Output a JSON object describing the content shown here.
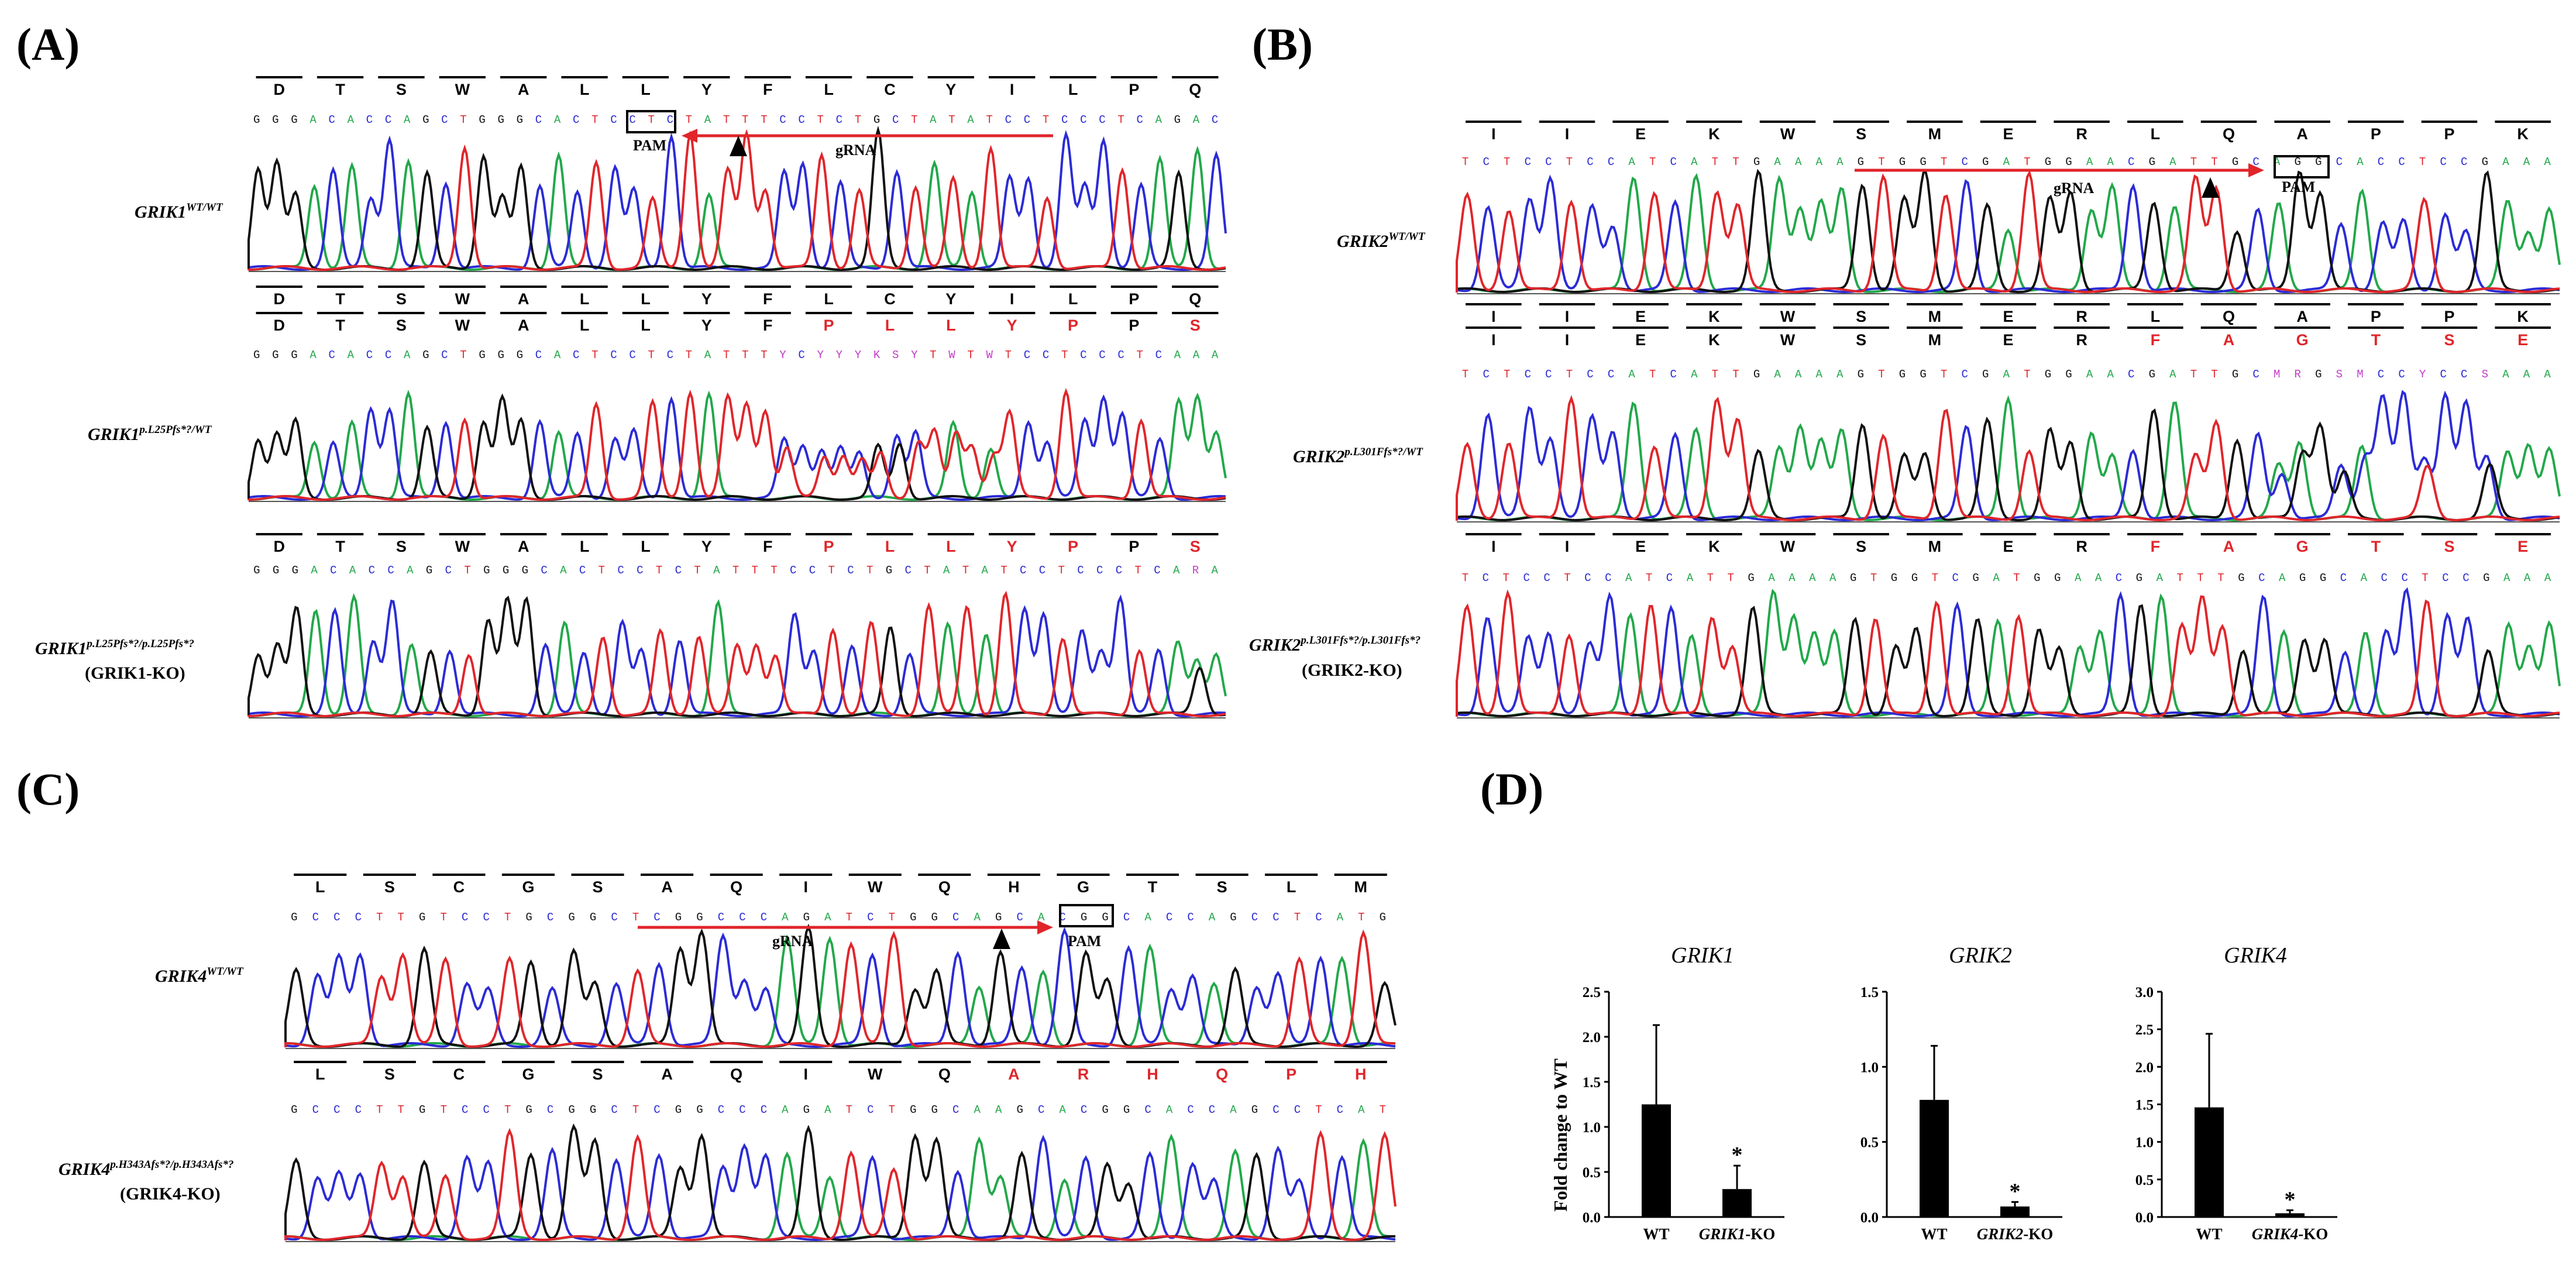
{
  "panel_labels": {
    "a": "(A)",
    "b": "(B)",
    "c": "(C)",
    "d": "(D)"
  },
  "annotations": {
    "pam": "PAM",
    "grna": "gRNA",
    "mark": "▲"
  },
  "colors": {
    "A": "#22a84a",
    "C": "#2b2bd6",
    "G": "#111111",
    "T": "#e0262b",
    "N": "#c23bc7",
    "mut": "#e0262b"
  },
  "panel_a": {
    "rows": [
      {
        "gene": "GRIK1",
        "sup": "WT/WT",
        "sub": "",
        "aa_wt": [
          "D",
          "T",
          "S",
          "W",
          "A",
          "L",
          "L",
          "Y",
          "F",
          "L",
          "C",
          "Y",
          "I",
          "L",
          "P",
          "Q"
        ],
        "aa_mut": [],
        "seq": "GGGACACCAGCTGGGCACTCCTCTATTTCCTCTGCTATATCCTCCCTCAGAC"
      },
      {
        "gene": "GRIK1",
        "sup": "p.L25Pfs*?/WT",
        "sub": "",
        "aa_wt": [
          "D",
          "T",
          "S",
          "W",
          "A",
          "L",
          "L",
          "Y",
          "F",
          "L",
          "C",
          "Y",
          "I",
          "L",
          "P",
          "Q"
        ],
        "aa_mut": [
          "D",
          "T",
          "S",
          "W",
          "A",
          "L",
          "L",
          "Y",
          "F",
          "P",
          "L",
          "L",
          "Y",
          "P",
          "P",
          "S"
        ],
        "seq": "GGGACACCAGCTGGGCACTCCTCTATTTYCYYYKSYTWTWTCCTCCCTCAAA"
      },
      {
        "gene": "GRIK1",
        "sup": "p.L25Pfs*?/p.L25Pfs*?",
        "sub": "(GRIK1-KO)",
        "aa_wt": [],
        "aa_mut": [
          "D",
          "T",
          "S",
          "W",
          "A",
          "L",
          "L",
          "Y",
          "F",
          "P",
          "L",
          "L",
          "Y",
          "P",
          "P",
          "S"
        ],
        "seq": "GGGACACCAGCTGGGCACTCCTCTATTTCCTCTGCTATATCCTCCCTCARA"
      }
    ]
  },
  "panel_b": {
    "rows": [
      {
        "gene": "GRIK2",
        "sup": "WT/WT",
        "sub": "",
        "aa_wt": [
          "I",
          "I",
          "E",
          "K",
          "W",
          "S",
          "M",
          "E",
          "R",
          "L",
          "Q",
          "A",
          "P",
          "P",
          "K"
        ],
        "aa_mut": [],
        "seq": "TCTCCTCCATCATTGAAAAGTGGTCGATGGAACGATTGCAGGCACCTCCGAAA"
      },
      {
        "gene": "GRIK2",
        "sup": "p.L301Ffs*?/WT",
        "sub": "",
        "aa_wt": [
          "I",
          "I",
          "E",
          "K",
          "W",
          "S",
          "M",
          "E",
          "R",
          "L",
          "Q",
          "A",
          "P",
          "P",
          "K"
        ],
        "aa_mut": [
          "I",
          "I",
          "E",
          "K",
          "W",
          "S",
          "M",
          "E",
          "R",
          "F",
          "A",
          "G",
          "T",
          "S",
          "E"
        ],
        "seq": "TCTCCTCCATCATTGAAAAGTGGTCGATGGAACGATTGCMRGSMCCYCCSAAA"
      },
      {
        "gene": "GRIK2",
        "sup": "p.L301Ffs*?/p.L301Ffs*?",
        "sub": "(GRIK2-KO)",
        "aa_wt": [],
        "aa_mut": [
          "I",
          "I",
          "E",
          "K",
          "W",
          "S",
          "M",
          "E",
          "R",
          "F",
          "A",
          "G",
          "T",
          "S",
          "E"
        ],
        "seq": "TCTCCTCCATCATTGAAAAGTGGTCGATGGAACGATTTGCAGGCACCTCCGAAA"
      }
    ]
  },
  "panel_c": {
    "rows": [
      {
        "gene": "GRIK4",
        "sup": "WT/WT",
        "sub": "",
        "aa_wt": [
          "L",
          "S",
          "C",
          "G",
          "S",
          "A",
          "Q",
          "I",
          "W",
          "Q",
          "H",
          "G",
          "T",
          "S",
          "L",
          "M"
        ],
        "aa_mut": [],
        "seq": "GCCCTTGTCCTGCGGCTCGGCCCAGATCTGGCAGCACGGCACCAGCCTCATG"
      },
      {
        "gene": "GRIK4",
        "sup": "p.H343Afs*?/p.H343Afs*?",
        "sub": "(GRIK4-KO)",
        "aa_wt": [],
        "aa_mut": [
          "L",
          "S",
          "C",
          "G",
          "S",
          "A",
          "Q",
          "I",
          "W",
          "Q",
          "A",
          "R",
          "H",
          "Q",
          "P",
          "H"
        ],
        "seq": "GCCCTTGTCCTGCGGCTCGGCCCAGATCTGGCAAGCACGGCACCAGCCTCAT"
      }
    ]
  },
  "chart_data": [
    {
      "type": "bar",
      "title": "GRIK1",
      "ylabel": "Fold change to WT",
      "categories": [
        "WT",
        "GRIK1-KO"
      ],
      "values": [
        1.25,
        0.31
      ],
      "error": [
        0.88,
        0.26
      ],
      "ylim": [
        0,
        2.5
      ],
      "yticks": [
        "0.0",
        "0.5",
        "1.0",
        "1.5",
        "2.0",
        "2.5"
      ],
      "significance": [
        "",
        "*"
      ]
    },
    {
      "type": "bar",
      "title": "GRIK2",
      "ylabel": "",
      "categories": [
        "WT",
        "GRIK2-KO"
      ],
      "values": [
        0.78,
        0.07
      ],
      "error": [
        0.36,
        0.03
      ],
      "ylim": [
        0,
        1.5
      ],
      "yticks": [
        "0.0",
        "0.5",
        "1.0",
        "1.5"
      ],
      "significance": [
        "",
        "*"
      ]
    },
    {
      "type": "bar",
      "title": "GRIK4",
      "ylabel": "",
      "categories": [
        "WT",
        "GRIK4-KO"
      ],
      "values": [
        1.46,
        0.05
      ],
      "error": [
        0.98,
        0.04
      ],
      "ylim": [
        0,
        3.0
      ],
      "yticks": [
        "0.0",
        "0.5",
        "1.0",
        "1.5",
        "2.0",
        "2.5",
        "3.0"
      ],
      "significance": [
        "",
        "*"
      ]
    }
  ]
}
